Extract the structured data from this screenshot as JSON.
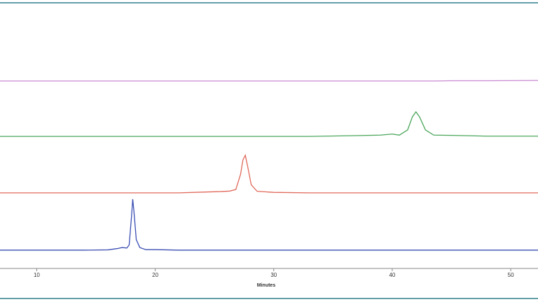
{
  "chart_data": {
    "type": "line",
    "x_label": "Minutes",
    "x": [
      6.9,
      10,
      14,
      16,
      16.8,
      17.2,
      17.6,
      17.8,
      18.0,
      18.1,
      18.2,
      18.4,
      18.7,
      19.2,
      20,
      22,
      24,
      25.5,
      26.3,
      26.8,
      27.2,
      27.4,
      27.6,
      27.8,
      28.1,
      28.6,
      30,
      33,
      37,
      39,
      40,
      40.6,
      41.3,
      41.7,
      42,
      42.3,
      42.8,
      43.5,
      45,
      48,
      52.3
    ],
    "series": [
      {
        "color": "#3a4db3",
        "values": [
          7,
          7,
          7,
          7.1,
          7.6,
          8.0,
          7.8,
          9,
          20,
          26.5,
          22,
          11,
          8,
          7.2,
          7.2,
          7,
          7,
          7,
          7,
          7,
          7,
          7,
          7,
          7,
          7,
          7,
          7,
          7,
          7,
          7,
          7,
          7,
          7,
          7,
          7,
          7,
          7,
          7,
          7,
          7,
          7
        ]
      },
      {
        "color": "#e0695a",
        "values": [
          28.9,
          28.9,
          28.9,
          28.9,
          28.9,
          28.9,
          28.9,
          28.9,
          28.9,
          28.9,
          28.9,
          28.9,
          28.9,
          28.9,
          28.9,
          28.9,
          29.2,
          29.4,
          29.6,
          30.2,
          36,
          41.5,
          43.3,
          39,
          32,
          29.5,
          29.1,
          28.9,
          28.9,
          28.9,
          28.9,
          28.9,
          28.9,
          28.9,
          28.9,
          28.9,
          28.9,
          28.9,
          28.9,
          28.9,
          28.9
        ]
      },
      {
        "color": "#4aa65a",
        "values": [
          50.5,
          50.5,
          50.5,
          50.5,
          50.5,
          50.5,
          50.5,
          50.5,
          50.5,
          50.5,
          50.5,
          50.5,
          50.5,
          50.5,
          50.5,
          50.5,
          50.5,
          50.5,
          50.5,
          50.5,
          50.5,
          50.5,
          50.5,
          50.5,
          50.5,
          50.5,
          50.5,
          50.5,
          50.8,
          51,
          51.4,
          51,
          53,
          58,
          59.9,
          58,
          53,
          51,
          50.9,
          50.6,
          50.6
        ]
      },
      {
        "color": "#c98ad2",
        "values": [
          71.7,
          71.7,
          71.7,
          71.7,
          71.7,
          71.7,
          71.7,
          71.7,
          71.7,
          71.7,
          71.7,
          71.7,
          71.7,
          71.7,
          71.7,
          71.7,
          71.7,
          71.7,
          71.7,
          71.7,
          71.7,
          71.7,
          71.7,
          71.7,
          71.7,
          71.7,
          71.7,
          71.7,
          71.7,
          71.7,
          71.7,
          71.7,
          71.7,
          71.7,
          71.7,
          71.7,
          71.7,
          71.7,
          71.8,
          71.8,
          71.9
        ]
      }
    ],
    "xlim": [
      6.9,
      52.3
    ],
    "xticks": [
      10,
      20,
      30,
      40,
      50
    ],
    "ylim": [
      0,
      100
    ],
    "grid": false
  }
}
